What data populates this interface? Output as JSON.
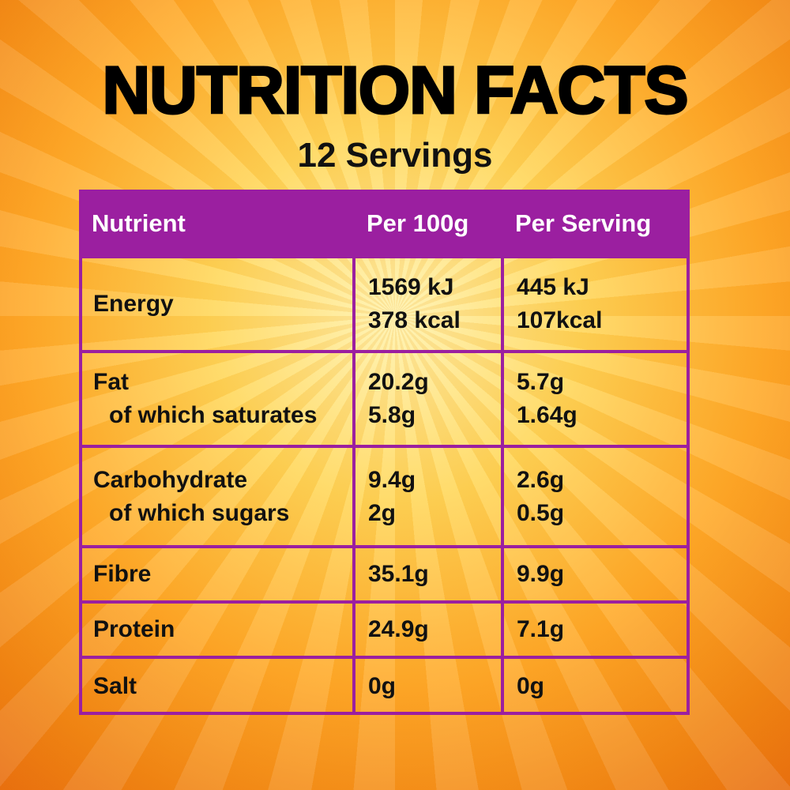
{
  "header": {
    "title": "NUTRITION FACTS",
    "subtitle": "12 Servings"
  },
  "table": {
    "columns": [
      "Nutrient",
      "Per 100g",
      "Per Serving"
    ],
    "rows": [
      [
        [
          "Energy"
        ],
        [
          "1569 kJ",
          "378 kcal"
        ],
        [
          "445 kJ",
          "107kcal"
        ]
      ],
      [
        [
          "Fat",
          "of which saturates"
        ],
        [
          "20.2g",
          "5.8g"
        ],
        [
          "5.7g",
          "1.64g"
        ]
      ],
      [
        [
          "Carbohydrate",
          "of which sugars"
        ],
        [
          "9.4g",
          "2g"
        ],
        [
          "2.6g",
          "0.5g"
        ]
      ],
      [
        [
          "Fibre"
        ],
        [
          "35.1g"
        ],
        [
          "9.9g"
        ]
      ],
      [
        [
          "Protein"
        ],
        [
          "24.9g"
        ],
        [
          "7.1g"
        ]
      ],
      [
        [
          "Salt"
        ],
        [
          "0g"
        ],
        [
          "0g"
        ]
      ]
    ]
  }
}
